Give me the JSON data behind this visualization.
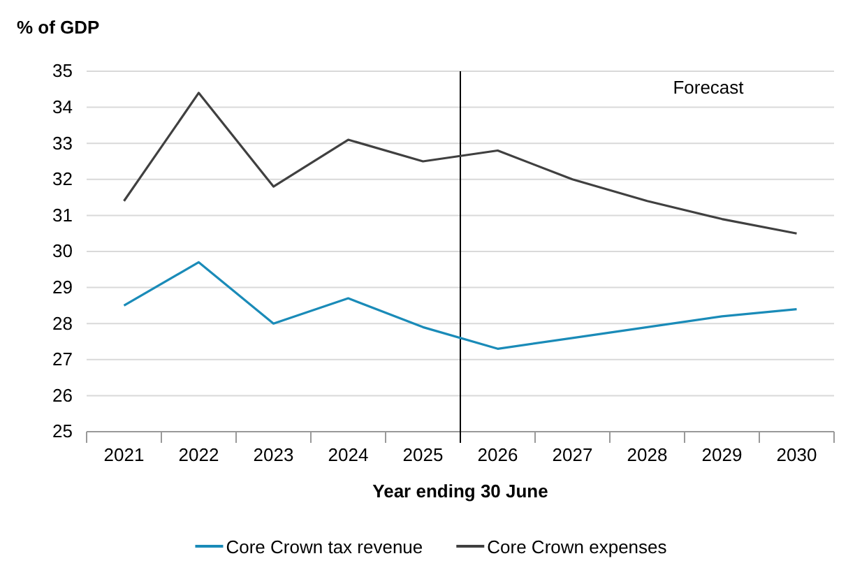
{
  "chart_data": {
    "type": "line",
    "ylabel": "% of GDP",
    "xlabel": "Year ending 30 June",
    "x": [
      2021,
      2022,
      2023,
      2024,
      2025,
      2026,
      2027,
      2028,
      2029,
      2030
    ],
    "xlim": [
      2020.5,
      2030.5
    ],
    "xticks": [
      2021,
      2022,
      2023,
      2024,
      2025,
      2026,
      2027,
      2028,
      2029,
      2030
    ],
    "ylim": [
      25,
      35
    ],
    "yticks": [
      25,
      26,
      27,
      28,
      29,
      30,
      31,
      32,
      33,
      34,
      35
    ],
    "grid": "y",
    "legend": "bottom",
    "series": [
      {
        "name": "Core Crown tax revenue",
        "color": "#1a8bb8",
        "values": [
          28.5,
          29.7,
          28.0,
          28.7,
          27.9,
          27.3,
          27.6,
          27.9,
          28.2,
          28.4
        ]
      },
      {
        "name": "Core Crown expenses",
        "color": "#404040",
        "values": [
          31.4,
          34.4,
          31.8,
          33.1,
          32.5,
          32.8,
          32.0,
          31.4,
          30.9,
          30.5
        ]
      }
    ],
    "ref_lines": [
      {
        "axis": "x",
        "value": 2025.5,
        "color": "#000000"
      }
    ],
    "annotations": [
      "Forecast"
    ]
  }
}
